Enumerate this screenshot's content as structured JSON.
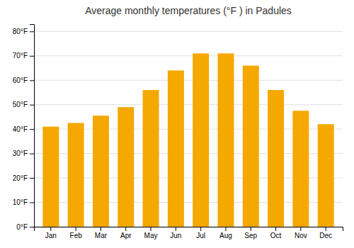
{
  "chart_data": {
    "type": "bar",
    "title": "Average monthly temperatures (°F ) in Padules",
    "categories": [
      "Jan",
      "Feb",
      "Mar",
      "Apr",
      "May",
      "Jun",
      "Jul",
      "Aug",
      "Sep",
      "Oct",
      "Nov",
      "Dec"
    ],
    "values": [
      41,
      42.5,
      45.5,
      49,
      56,
      64,
      71,
      71,
      66,
      56,
      47.5,
      42
    ],
    "color": "#F5A800",
    "ylim": [
      0,
      83
    ],
    "yticks": [
      {
        "value": 0,
        "label": "0°F"
      },
      {
        "value": 10,
        "label": "10°F"
      },
      {
        "value": 20,
        "label": "20°F"
      },
      {
        "value": 30,
        "label": "30°F"
      },
      {
        "value": 40,
        "label": "40°F"
      },
      {
        "value": 50,
        "label": "50°F"
      },
      {
        "value": 60,
        "label": "60°F"
      },
      {
        "value": 70,
        "label": "70°F"
      },
      {
        "value": 80,
        "label": "80°F"
      }
    ],
    "grid": true
  }
}
